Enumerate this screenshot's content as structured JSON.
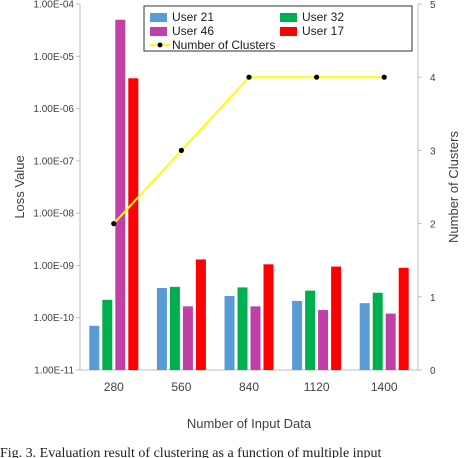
{
  "chart_data": {
    "type": "bar",
    "categories": [
      "280",
      "560",
      "840",
      "1120",
      "1400"
    ],
    "xlabel": "Number of Input Data",
    "ylabel": "Loss Value",
    "y2label": "Number of Clusters",
    "yscale": "log",
    "ylim": [
      1e-11,
      0.0001
    ],
    "y_ticks": [
      "1.00E-11",
      "1.00E-10",
      "1.00E-09",
      "1.00E-08",
      "1.00E-07",
      "1.00E-06",
      "1.00E-05",
      "1.00E-04"
    ],
    "y2lim": [
      0,
      5
    ],
    "y2_ticks": [
      "0",
      "1",
      "2",
      "3",
      "4",
      "5"
    ],
    "grid": false,
    "legend_position": "top-right",
    "series": [
      {
        "name": "User 21",
        "axis": "left",
        "kind": "bar",
        "color": "#5b9bd5",
        "values": [
          7e-11,
          3.7e-10,
          2.6e-10,
          2.1e-10,
          1.9e-10
        ]
      },
      {
        "name": "User 32",
        "axis": "left",
        "kind": "bar",
        "color": "#00b050",
        "values": [
          2.2e-10,
          3.9e-10,
          3.8e-10,
          3.3e-10,
          3e-10
        ]
      },
      {
        "name": "User 46",
        "axis": "left",
        "kind": "bar",
        "color": "#c040a8",
        "values": [
          5e-05,
          1.65e-10,
          1.65e-10,
          1.4e-10,
          1.2e-10
        ]
      },
      {
        "name": "User 17",
        "axis": "left",
        "kind": "bar",
        "color": "#ff0000",
        "values": [
          3.8e-06,
          1.3e-09,
          1.05e-09,
          9.5e-10,
          9e-10
        ]
      },
      {
        "name": "Number of Clusters",
        "axis": "right",
        "kind": "line",
        "color": "#ffff00",
        "marker_color": "#000000",
        "values": [
          2,
          3,
          4,
          4,
          4
        ]
      }
    ]
  },
  "caption": "Fig. 3.  Evaluation result of clustering as a function of multiple input"
}
